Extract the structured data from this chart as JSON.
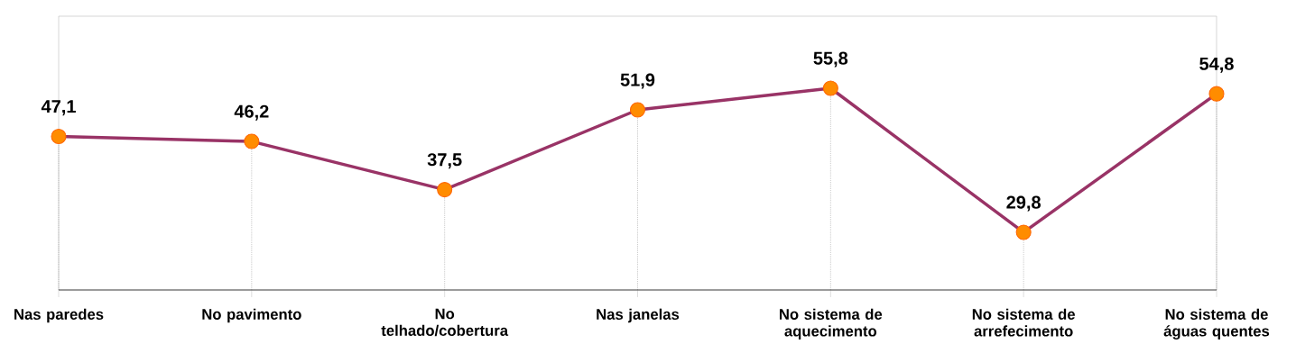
{
  "chart_data": {
    "type": "line",
    "categories": [
      "Nas paredes",
      "No pavimento",
      "No telhado/cobertura",
      "Nas janelas",
      "No sistema de aquecimento",
      "No sistema de arrefecimento",
      "No sistema de águas quentes"
    ],
    "series": [
      {
        "color": "#993366",
        "values": [
          47.1,
          46.2,
          37.5,
          51.9,
          55.8,
          29.8,
          54.8
        ],
        "value_labels": [
          "47,1",
          "46,2",
          "37,5",
          "51,9",
          "55,8",
          "29,8",
          "54,8"
        ]
      }
    ],
    "marker": "circle",
    "line_style": "solid",
    "data_labels": true,
    "legend": false,
    "grid": "x"
  }
}
